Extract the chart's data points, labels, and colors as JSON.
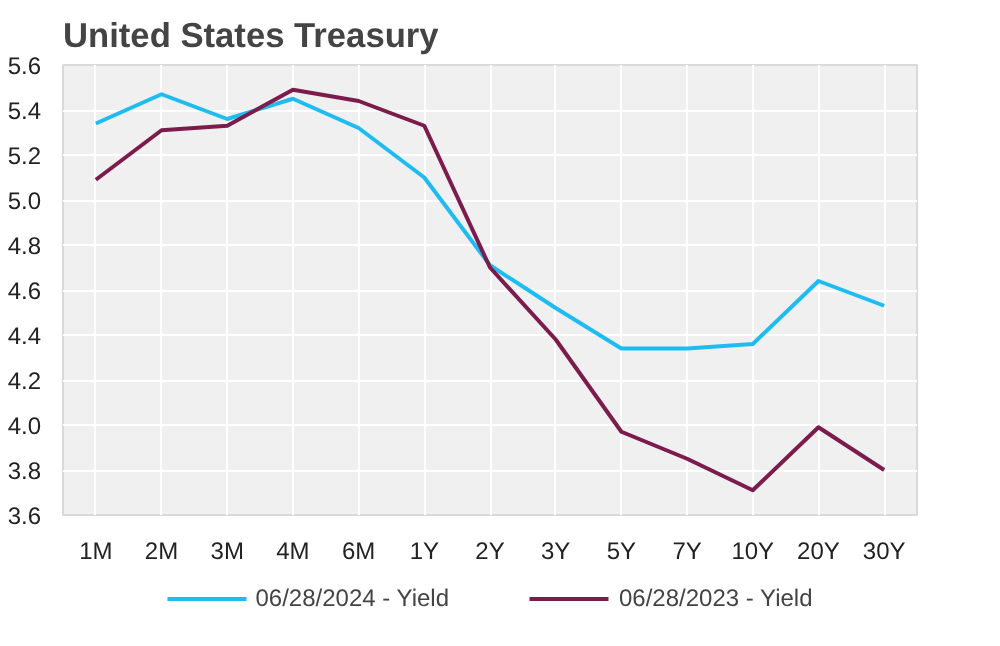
{
  "chart_data": {
    "type": "line",
    "title": "United States Treasury",
    "categories": [
      "1M",
      "2M",
      "3M",
      "4M",
      "6M",
      "1Y",
      "2Y",
      "3Y",
      "5Y",
      "7Y",
      "10Y",
      "20Y",
      "30Y"
    ],
    "series": [
      {
        "name": "06/28/2024 - Yield",
        "color": "#1ebcf0",
        "values": [
          5.34,
          5.47,
          5.36,
          5.45,
          5.32,
          5.1,
          4.71,
          4.52,
          4.34,
          4.34,
          4.36,
          4.64,
          4.53
        ]
      },
      {
        "name": "06/28/2023 - Yield",
        "color": "#7b1c4c",
        "values": [
          5.09,
          5.31,
          5.33,
          5.49,
          5.44,
          5.33,
          4.7,
          4.38,
          3.97,
          3.85,
          3.71,
          3.99,
          3.8
        ]
      }
    ],
    "ylim": [
      3.6,
      5.6
    ],
    "yticks": [
      {
        "value": 3.6,
        "label": "3.6"
      },
      {
        "value": 3.8,
        "label": "3.8"
      },
      {
        "value": 4.0,
        "label": "4.0"
      },
      {
        "value": 4.2,
        "label": "4.2"
      },
      {
        "value": 4.4,
        "label": "4.4"
      },
      {
        "value": 4.6,
        "label": "4.6"
      },
      {
        "value": 4.8,
        "label": "4.8"
      },
      {
        "value": 5.0,
        "label": "5.0"
      },
      {
        "value": 5.2,
        "label": "5.2"
      },
      {
        "value": 5.4,
        "label": "5.4"
      },
      {
        "value": 5.6,
        "label": "5.6"
      }
    ],
    "grid": true,
    "legend": "bottom"
  }
}
